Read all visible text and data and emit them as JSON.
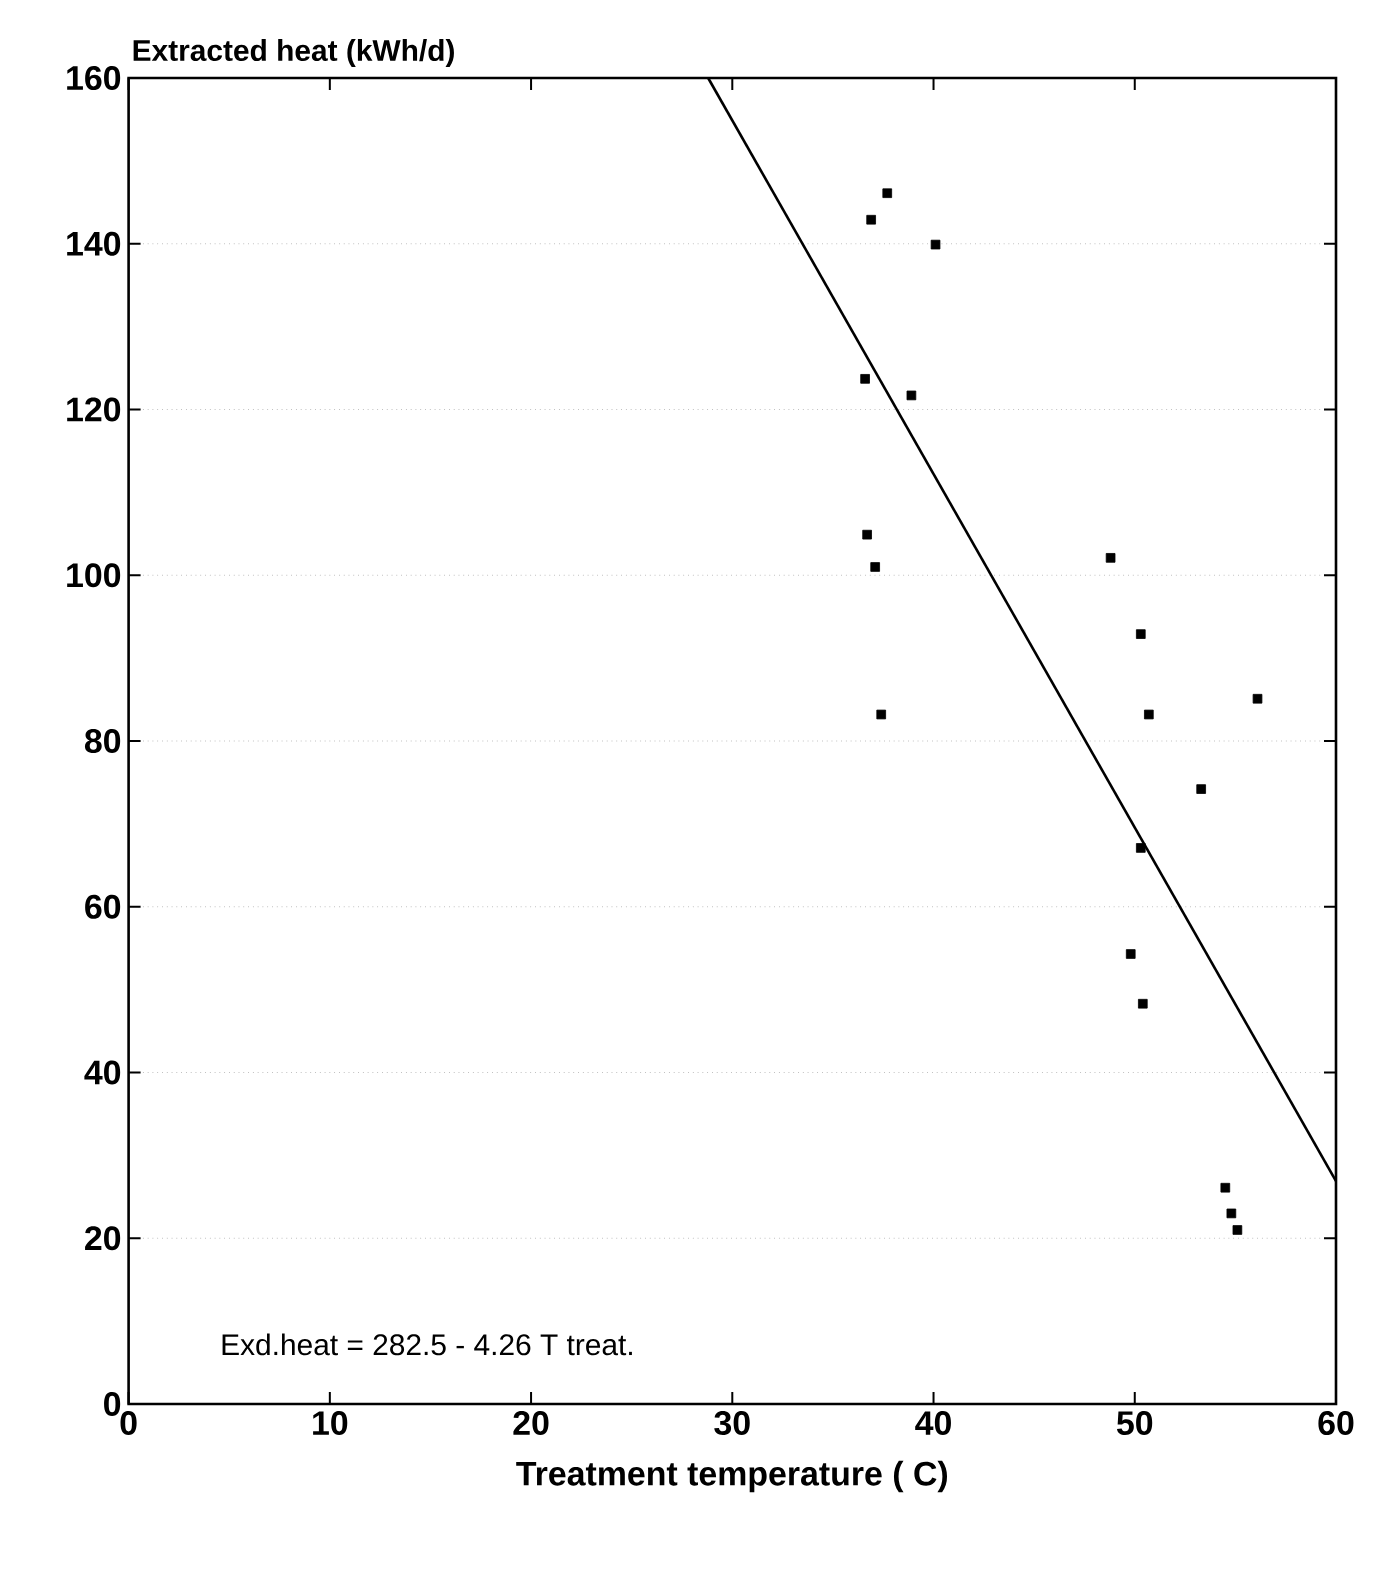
{
  "chart_data": {
    "type": "scatter",
    "ylabel": "Extracted heat (kWh/d)",
    "xlabel": "Treatment temperature  ( C)",
    "annotations": [
      "Exd.heat = 282.5 - 4.26 T treat."
    ],
    "xlim": [
      0,
      60
    ],
    "xticks": [
      0,
      10,
      20,
      30,
      40,
      50,
      60
    ],
    "ylim": [
      0,
      160
    ],
    "yticks": [
      0,
      20,
      40,
      60,
      80,
      100,
      120,
      140,
      160
    ],
    "grid": "y",
    "series": [
      {
        "marker": "square",
        "color": "#000000",
        "x": [
          37.7,
          36.9,
          40.1,
          36.6,
          38.9,
          36.7,
          37.1,
          48.8,
          50.3,
          50.7,
          37.4,
          56.1,
          53.3,
          50.3,
          49.8,
          50.4,
          54.5,
          54.8,
          55.1
        ],
        "values": [
          146.1,
          142.9,
          139.9,
          123.7,
          121.7,
          104.9,
          101.0,
          102.1,
          92.9,
          83.2,
          83.2,
          85.1,
          74.2,
          67.1,
          54.3,
          48.3,
          26.1,
          23.0,
          21.0
        ]
      },
      {
        "type": "line",
        "marker": "none",
        "color": "#000000",
        "x": [
          28.8,
          60
        ],
        "values": [
          160,
          26.9
        ]
      }
    ]
  }
}
